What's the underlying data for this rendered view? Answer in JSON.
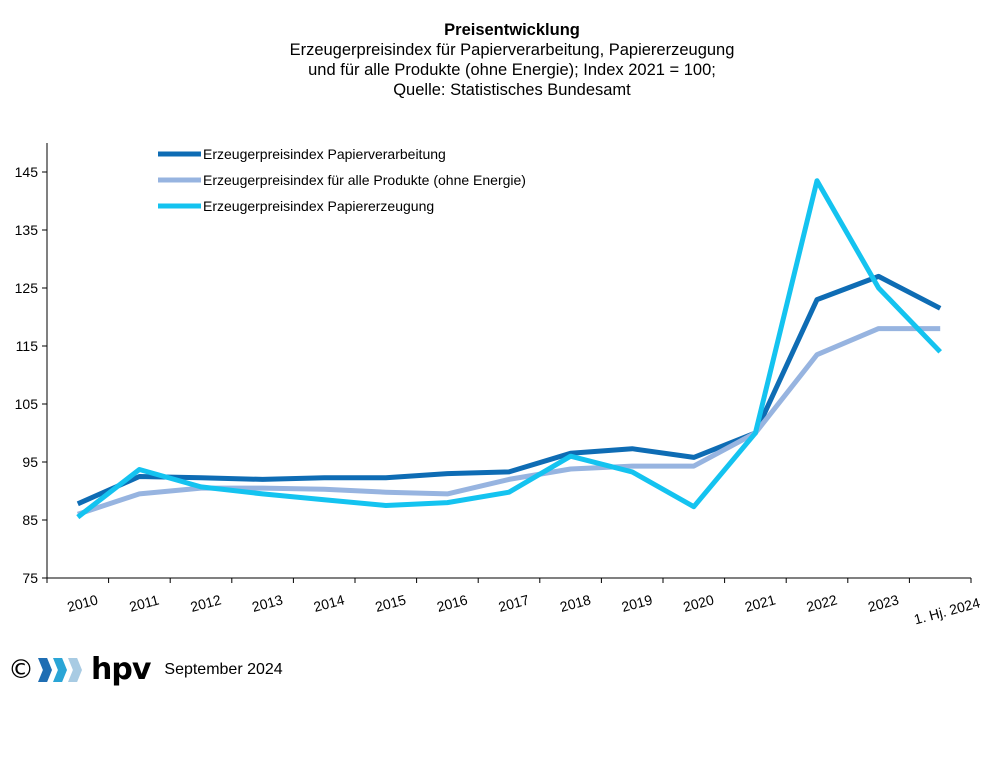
{
  "header": {
    "title": "Preisentwicklung",
    "subtitle_lines": [
      "Erzeugerpreisindex für Papierverarbeitung, Papiererzeugung",
      "und  für alle Produkte (ohne Energie); Index 2021 = 100;",
      "Quelle: Statistisches Bundesamt"
    ]
  },
  "footer": {
    "copyright_symbol": "©",
    "brand": "hpv",
    "date": "September 2024",
    "colors": [
      "#1f6eb3",
      "#2aa5d6",
      "#a8cbe3"
    ]
  },
  "chart_data": {
    "type": "line",
    "title": "Preisentwicklung",
    "categories": [
      "2010",
      "2011",
      "2012",
      "2013",
      "2014",
      "2015",
      "2016",
      "2017",
      "2018",
      "2019",
      "2020",
      "2021",
      "2022",
      "2023",
      "1. Hj. 2024"
    ],
    "ylim": [
      75,
      150
    ],
    "yticks": [
      75,
      85,
      95,
      105,
      115,
      125,
      135,
      145
    ],
    "grid": false,
    "legend_position": "top-left",
    "series": [
      {
        "name": "Erzeugerpreisindex Papierverarbeitung",
        "color": "#0e6cb4",
        "values": [
          87.8,
          92.5,
          92.3,
          92.0,
          92.3,
          92.3,
          93.0,
          93.3,
          96.5,
          97.3,
          95.8,
          100.0,
          123.0,
          127.0,
          121.5
        ]
      },
      {
        "name": "Erzeugerpreisindex für alle Produkte (ohne Energie)",
        "color": "#97b4e0",
        "values": [
          86.0,
          89.5,
          90.5,
          90.5,
          90.3,
          89.8,
          89.5,
          92.0,
          93.8,
          94.3,
          94.3,
          100.0,
          113.5,
          118.0,
          118.0
        ]
      },
      {
        "name": "Erzeugerpreisindex Papiererzeugung",
        "color": "#14c3f0",
        "values": [
          85.5,
          93.7,
          90.7,
          89.5,
          88.5,
          87.5,
          88.0,
          89.8,
          96.0,
          93.3,
          87.3,
          100.0,
          143.5,
          125.0,
          114.0
        ]
      }
    ]
  }
}
